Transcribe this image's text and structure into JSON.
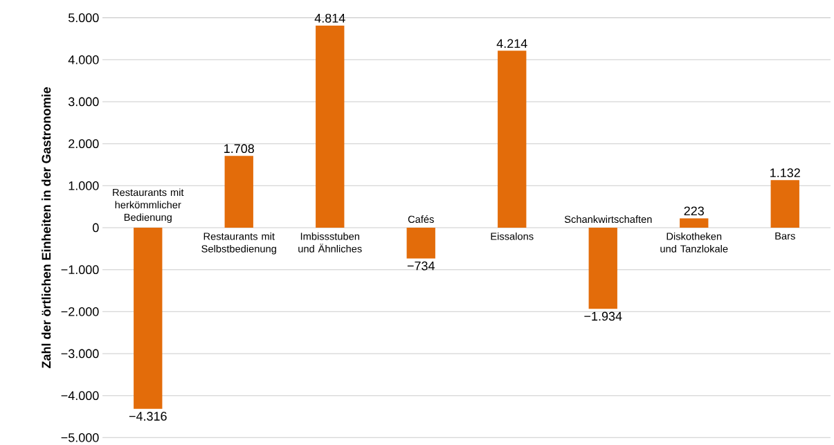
{
  "chart_data": {
    "type": "bar",
    "ylabel": "Zahl der örtlichen Einheiten in der Gastronomie",
    "categories": [
      "Restaurants mit herkömmlicher Bedienung",
      "Restaurants mit Selbstbedienung",
      "Imbissstuben und Ähnliches",
      "Cafés",
      "Eissalons",
      "Schankwirtschaften",
      "Diskotheken und Tanzlokale",
      "Bars"
    ],
    "values": [
      -4316,
      1708,
      4814,
      -734,
      4214,
      -1934,
      223,
      1132
    ],
    "value_labels": [
      "−4.316",
      "1.708",
      "4.814",
      "−734",
      "4.214",
      "−1.934",
      "223",
      "1.132"
    ],
    "color": "#e36c0a",
    "ylim": [
      -5000,
      5000
    ],
    "yticks": [
      {
        "value": -5000,
        "label": "−5.000"
      },
      {
        "value": -4000,
        "label": "−4.000"
      },
      {
        "value": -3000,
        "label": "−3.000"
      },
      {
        "value": -2000,
        "label": "−2.000"
      },
      {
        "value": -1000,
        "label": "−1.000"
      },
      {
        "value": 0,
        "label": "0"
      },
      {
        "value": 1000,
        "label": "1.000"
      },
      {
        "value": 2000,
        "label": "2.000"
      },
      {
        "value": 3000,
        "label": "3.000"
      },
      {
        "value": 4000,
        "label": "4.000"
      },
      {
        "value": 5000,
        "label": "5.000"
      }
    ],
    "grid": "y"
  }
}
